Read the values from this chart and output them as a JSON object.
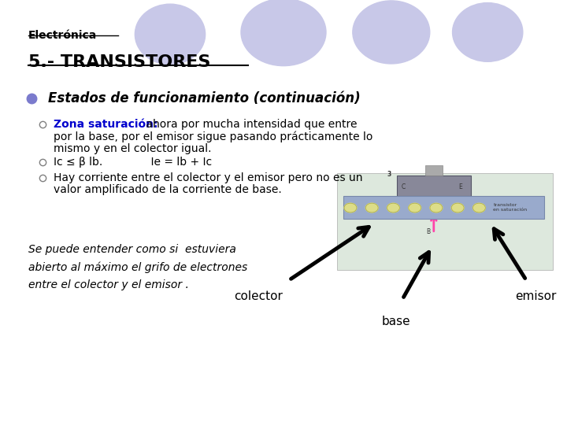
{
  "title_small": "Electrónica",
  "title_main": "5.- TRANSISTORES",
  "bullet_main": "Estados de funcionamiento (continuación)",
  "bullet1_bold": "Zona saturación:",
  "bullet2": "Ic ≤ β lb.              Ie = lb + Ic",
  "italic_text": "Se puede entender como si  estuviera\nabierto al máximo el grifo de electrones\nentre el colector y el emisor .",
  "label_colector": "colector",
  "label_base": "base",
  "label_emisor": "emisor",
  "bg_color": "#ffffff",
  "title_color": "#000000",
  "blue_color": "#0000cd",
  "bullet_color": "#7b7bcd",
  "circle_fill": "#c8c8e8",
  "underline_color": "#000000"
}
